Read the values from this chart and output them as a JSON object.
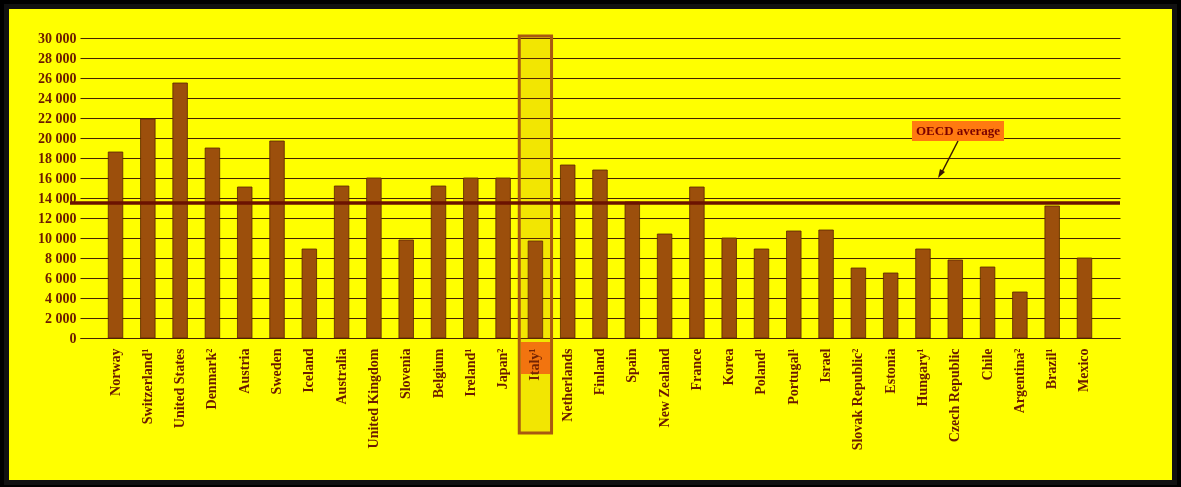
{
  "chart_data": {
    "type": "bar",
    "categories": [
      "Norway",
      "Switzerland¹",
      "United States",
      "Denmark²",
      "Austria",
      "Sweden",
      "Iceland",
      "Australia",
      "United Kingdom",
      "Slovenia",
      "Belgium",
      "Ireland¹",
      "Japan²",
      "Italy¹",
      "Netherlands",
      "Finland",
      "Spain",
      "New Zealand",
      "France",
      "Korea",
      "Poland¹",
      "Portugal¹",
      "Israel",
      "Slovak Republic²",
      "Estonia",
      "Hungary¹",
      "Czech Republic",
      "Chile",
      "Argentina²",
      "Brazil¹",
      "Mexico"
    ],
    "values": [
      18600,
      21900,
      25500,
      19000,
      15100,
      19700,
      8900,
      15200,
      16000,
      9800,
      15200,
      16000,
      16000,
      9700,
      17300,
      16800,
      13600,
      10400,
      15100,
      10000,
      8900,
      10700,
      10800,
      7000,
      6500,
      8900,
      7800,
      7100,
      4600,
      13200,
      8000
    ],
    "color": "#9c4f0c",
    "ylim": [
      0,
      30000
    ],
    "yticks": [
      {
        "value": 0,
        "label": "0"
      },
      {
        "value": 2000,
        "label": "2 000"
      },
      {
        "value": 4000,
        "label": "4 000"
      },
      {
        "value": 6000,
        "label": "6 000"
      },
      {
        "value": 8000,
        "label": "8 000"
      },
      {
        "value": 10000,
        "label": "10 000"
      },
      {
        "value": 12000,
        "label": "12 000"
      },
      {
        "value": 14000,
        "label": "14 000"
      },
      {
        "value": 16000,
        "label": "16 000"
      },
      {
        "value": 18000,
        "label": "18 000"
      },
      {
        "value": 20000,
        "label": "20 000"
      },
      {
        "value": 22000,
        "label": "22 000"
      },
      {
        "value": 24000,
        "label": "24 000"
      },
      {
        "value": 26000,
        "label": "26 000"
      },
      {
        "value": 28000,
        "label": "28 000"
      },
      {
        "value": 30000,
        "label": "30 000"
      }
    ],
    "grid": "y",
    "bands": [
      {
        "axis": "x",
        "from": "Italy¹",
        "to": "Italy¹",
        "color": "#a85a10"
      }
    ],
    "ref_lines": [
      {
        "axis": "y",
        "value": 13500,
        "label": "OECD average",
        "color": "#6b1200"
      }
    ]
  }
}
